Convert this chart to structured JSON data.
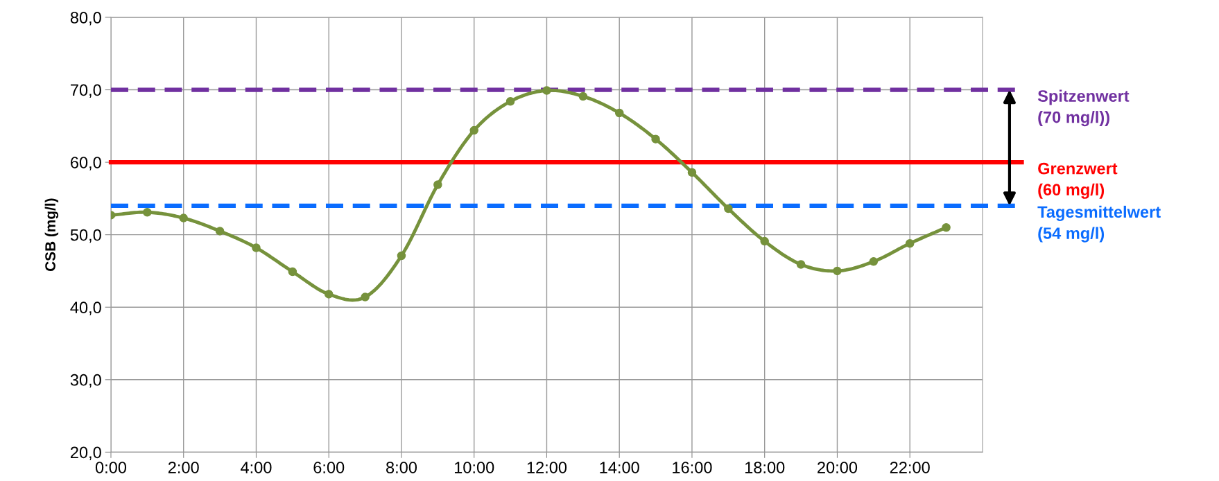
{
  "chart_data": {
    "type": "line",
    "ylabel": "CSB (mg/l)",
    "x": [
      0,
      1,
      2,
      3,
      4,
      5,
      6,
      7,
      8,
      9,
      10,
      11,
      12,
      13,
      14,
      15,
      16,
      17,
      18,
      19,
      20,
      21,
      22,
      23
    ],
    "series": [
      {
        "color": "#76923c",
        "values": [
          52.7,
          53.1,
          52.3,
          50.5,
          48.2,
          44.9,
          41.8,
          41.4,
          47.1,
          56.9,
          64.4,
          68.4,
          69.9,
          69.1,
          66.8,
          63.2,
          58.6,
          53.6,
          49.1,
          45.9,
          45.0,
          46.3,
          48.8,
          51.0
        ]
      }
    ],
    "xlim": [
      0,
      24
    ],
    "xticks": [
      {
        "value": 0,
        "label": "0:00"
      },
      {
        "value": 2,
        "label": "2:00"
      },
      {
        "value": 4,
        "label": "4:00"
      },
      {
        "value": 6,
        "label": "6:00"
      },
      {
        "value": 8,
        "label": "8:00"
      },
      {
        "value": 10,
        "label": "10:00"
      },
      {
        "value": 12,
        "label": "12:00"
      },
      {
        "value": 14,
        "label": "14:00"
      },
      {
        "value": 16,
        "label": "16:00"
      },
      {
        "value": 18,
        "label": "18:00"
      },
      {
        "value": 20,
        "label": "20:00"
      },
      {
        "value": 22,
        "label": "22:00"
      }
    ],
    "ylim": [
      20,
      80
    ],
    "yticks": [
      {
        "value": 20,
        "label": "20,0"
      },
      {
        "value": 30,
        "label": "30,0"
      },
      {
        "value": 40,
        "label": "40,0"
      },
      {
        "value": 50,
        "label": "50,0"
      },
      {
        "value": 60,
        "label": "60,0"
      },
      {
        "value": 70,
        "label": "70,0"
      },
      {
        "value": 80,
        "label": "80,0"
      }
    ],
    "ref_lines": [
      {
        "axis": "y",
        "value": 70,
        "label": "Spitzenwert\n(70 mg/l))",
        "color": "#7030a0",
        "line_style": "dashed"
      },
      {
        "axis": "y",
        "value": 60,
        "label": "Grenzwert\n(60 mg/l)",
        "color": "#ff0000",
        "line_style": "solid"
      },
      {
        "axis": "y",
        "value": 54,
        "label": "Tagesmittelwert\n(54 mg/l)",
        "color": "#0a6cff",
        "line_style": "dashed"
      }
    ],
    "grid": true,
    "marker": "circle",
    "line_style": "solid",
    "legend": false
  }
}
